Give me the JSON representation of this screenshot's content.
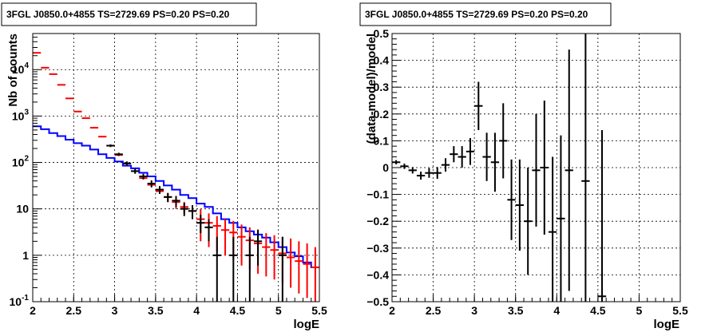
{
  "chart_data": [
    {
      "type": "line",
      "title": "3FGL J0850.0+4855 TS=2729.69 PS=0.20 PS=0.20",
      "xlabel": "logE",
      "ylabel": "Nb of counts",
      "xlim": [
        2,
        5.5
      ],
      "ylim": [
        0.1,
        60000
      ],
      "log_y": true,
      "grid": true,
      "x_ticks": [
        "2",
        "2.5",
        "3",
        "3.5",
        "4",
        "4.5",
        "5",
        "5.5"
      ],
      "y_ticks": [
        "10^-1",
        "1",
        "10",
        "10^2",
        "10^3",
        "10^4"
      ],
      "bin_edges": [
        2.0,
        2.1,
        2.2,
        2.3,
        2.4,
        2.5,
        2.6,
        2.7,
        2.8,
        2.9,
        3.0,
        3.1,
        3.2,
        3.3,
        3.4,
        3.5,
        3.6,
        3.7,
        3.8,
        3.9,
        4.0,
        4.1,
        4.2,
        4.3,
        4.4,
        4.5,
        4.6,
        4.7,
        4.8,
        4.9,
        5.0,
        5.1,
        5.2,
        5.3,
        5.4,
        5.5
      ],
      "series": [
        {
          "kind": "data",
          "color": "#000000",
          "points": [
            {
              "x": 2.95,
              "y": 230,
              "lo": 215,
              "hi": 245
            },
            {
              "x": 3.05,
              "y": 150,
              "lo": 138,
              "hi": 162
            },
            {
              "x": 3.15,
              "y": 95,
              "lo": 86,
              "hi": 105
            },
            {
              "x": 3.25,
              "y": 65,
              "lo": 57,
              "hi": 73
            },
            {
              "x": 3.35,
              "y": 50,
              "lo": 43,
              "hi": 57
            },
            {
              "x": 3.45,
              "y": 35,
              "lo": 29,
              "hi": 41
            },
            {
              "x": 3.55,
              "y": 26,
              "lo": 21,
              "hi": 31
            },
            {
              "x": 3.65,
              "y": 18,
              "lo": 14,
              "hi": 22
            },
            {
              "x": 3.75,
              "y": 15,
              "lo": 11,
              "hi": 19
            },
            {
              "x": 3.85,
              "y": 10,
              "lo": 7,
              "hi": 13.5
            },
            {
              "x": 3.95,
              "y": 9,
              "lo": 6,
              "hi": 12
            },
            {
              "x": 4.05,
              "y": 5,
              "lo": 3,
              "hi": 7.5
            },
            {
              "x": 4.15,
              "y": 4,
              "lo": 2,
              "hi": 6
            },
            {
              "x": 4.25,
              "y": 1,
              "lo": 0.1,
              "hi": 2.5
            },
            {
              "x": 4.45,
              "y": 1,
              "lo": 0.1,
              "hi": 2.5
            },
            {
              "x": 4.65,
              "y": 1,
              "lo": 0.1,
              "hi": 2.5
            },
            {
              "x": 4.75,
              "y": 2,
              "lo": 0.6,
              "hi": 3.5
            },
            {
              "x": 5.05,
              "y": 1,
              "lo": 0.1,
              "hi": 2.5
            }
          ]
        },
        {
          "kind": "model",
          "color": "#ff0000",
          "points": [
            {
              "x": 2.05,
              "y": 23000,
              "lo": 23000,
              "hi": 23000
            },
            {
              "x": 2.15,
              "y": 11000,
              "lo": 11000,
              "hi": 11000
            },
            {
              "x": 2.25,
              "y": 8000,
              "lo": 8000,
              "hi": 8000
            },
            {
              "x": 2.35,
              "y": 4700,
              "lo": 4700,
              "hi": 4700
            },
            {
              "x": 2.45,
              "y": 2400,
              "lo": 2400,
              "hi": 2400
            },
            {
              "x": 2.55,
              "y": 1250,
              "lo": 1250,
              "hi": 1250
            },
            {
              "x": 2.65,
              "y": 900,
              "lo": 900,
              "hi": 900
            },
            {
              "x": 2.75,
              "y": 560,
              "lo": 560,
              "hi": 560
            },
            {
              "x": 2.85,
              "y": 360,
              "lo": 360,
              "hi": 360
            },
            {
              "x": 2.95,
              "y": 230,
              "lo": 230,
              "hi": 230
            },
            {
              "x": 3.05,
              "y": 145,
              "lo": 145,
              "hi": 145
            },
            {
              "x": 3.15,
              "y": 95,
              "lo": 95,
              "hi": 95
            },
            {
              "x": 3.25,
              "y": 65,
              "lo": 65,
              "hi": 65
            },
            {
              "x": 3.35,
              "y": 46,
              "lo": 46,
              "hi": 46
            },
            {
              "x": 3.45,
              "y": 33,
              "lo": 33,
              "hi": 33
            },
            {
              "x": 3.55,
              "y": 24,
              "lo": 24,
              "hi": 24
            },
            {
              "x": 3.65,
              "y": 18,
              "lo": 14,
              "hi": 22
            },
            {
              "x": 3.75,
              "y": 14,
              "lo": 10,
              "hi": 18
            },
            {
              "x": 3.85,
              "y": 11,
              "lo": 8,
              "hi": 14
            },
            {
              "x": 3.95,
              "y": 9,
              "lo": 6,
              "hi": 12
            },
            {
              "x": 4.05,
              "y": 6,
              "lo": 2,
              "hi": 10
            },
            {
              "x": 4.15,
              "y": 5,
              "lo": 1.5,
              "hi": 8
            },
            {
              "x": 4.25,
              "y": 4.3,
              "lo": 1.2,
              "hi": 7
            },
            {
              "x": 4.35,
              "y": 3.5,
              "lo": 1,
              "hi": 6
            },
            {
              "x": 4.45,
              "y": 3.1,
              "lo": 0.8,
              "hi": 5.5
            },
            {
              "x": 4.55,
              "y": 2.5,
              "lo": 0.6,
              "hi": 4.6
            },
            {
              "x": 4.65,
              "y": 2.1,
              "lo": 0.5,
              "hi": 4
            },
            {
              "x": 4.75,
              "y": 1.8,
              "lo": 0.4,
              "hi": 3.6
            },
            {
              "x": 4.85,
              "y": 1.5,
              "lo": 0.35,
              "hi": 3
            },
            {
              "x": 4.95,
              "y": 1.3,
              "lo": 0.3,
              "hi": 2.7
            },
            {
              "x": 5.05,
              "y": 1.1,
              "lo": 0.25,
              "hi": 2.5
            },
            {
              "x": 5.15,
              "y": 0.9,
              "lo": 0.2,
              "hi": 2.3
            },
            {
              "x": 5.25,
              "y": 0.75,
              "lo": 0.15,
              "hi": 2
            },
            {
              "x": 5.35,
              "y": 0.65,
              "lo": 0.12,
              "hi": 1.8
            },
            {
              "x": 5.45,
              "y": 0.55,
              "lo": 0.1,
              "hi": 1.5
            }
          ]
        },
        {
          "kind": "histogram",
          "color": "#0000ff",
          "values": [
            600,
            520,
            430,
            370,
            310,
            260,
            230,
            190,
            150,
            125,
            105,
            85,
            75,
            60,
            50,
            40,
            32,
            26,
            20,
            17,
            13,
            11,
            8,
            6,
            5,
            4,
            3.3,
            2.8,
            2.4,
            1.9,
            1.5,
            1.15,
            0.95,
            0.7,
            0.55
          ]
        }
      ]
    },
    {
      "type": "scatter",
      "title": "3FGL J0850.0+4855 TS=2729.69 PS=0.20 PS=0.20",
      "xlabel": "logE",
      "ylabel": "(data-model)/model",
      "xlim": [
        2,
        5.5
      ],
      "ylim": [
        -0.5,
        0.5
      ],
      "grid": true,
      "x_ticks": [
        "2",
        "2.5",
        "3",
        "3.5",
        "4",
        "4.5",
        "5",
        "5.5"
      ],
      "y_ticks": [
        "−0.5",
        "−0.4",
        "−0.3",
        "−0.2",
        "−0.1",
        "0",
        "0.1",
        "0.2",
        "0.3",
        "0.4",
        "0.5"
      ],
      "points": [
        {
          "x": 2.05,
          "y": 0.02,
          "err": 0.008
        },
        {
          "x": 2.15,
          "y": 0.005,
          "err": 0.01
        },
        {
          "x": 2.25,
          "y": -0.01,
          "err": 0.012
        },
        {
          "x": 2.35,
          "y": -0.03,
          "err": 0.015
        },
        {
          "x": 2.45,
          "y": -0.02,
          "err": 0.018
        },
        {
          "x": 2.55,
          "y": -0.02,
          "err": 0.022
        },
        {
          "x": 2.65,
          "y": 0.01,
          "err": 0.025
        },
        {
          "x": 2.75,
          "y": 0.05,
          "err": 0.03
        },
        {
          "x": 2.85,
          "y": 0.04,
          "err": 0.04
        },
        {
          "x": 2.95,
          "y": 0.06,
          "err": 0.05
        },
        {
          "x": 3.05,
          "y": 0.23,
          "err": 0.09
        },
        {
          "x": 3.15,
          "y": 0.04,
          "err": 0.09
        },
        {
          "x": 3.25,
          "y": 0.02,
          "err": 0.11
        },
        {
          "x": 3.35,
          "y": 0.1,
          "err": 0.14
        },
        {
          "x": 3.45,
          "y": -0.12,
          "err": 0.15
        },
        {
          "x": 3.55,
          "y": -0.14,
          "err": 0.17
        },
        {
          "x": 3.65,
          "y": -0.2,
          "err": 0.2
        },
        {
          "x": 3.75,
          "y": -0.01,
          "err": 0.21
        },
        {
          "x": 3.85,
          "y": 0.0,
          "err": 0.25
        },
        {
          "x": 3.95,
          "y": -0.24,
          "err": 0.28
        },
        {
          "x": 4.05,
          "y": -0.19,
          "err": 0.31
        },
        {
          "x": 4.15,
          "y": -0.01,
          "err": 0.45
        },
        {
          "x": 4.35,
          "y": -0.05,
          "err": 0.6
        },
        {
          "x": 4.55,
          "y": -0.48,
          "err": 0.62
        }
      ]
    }
  ]
}
